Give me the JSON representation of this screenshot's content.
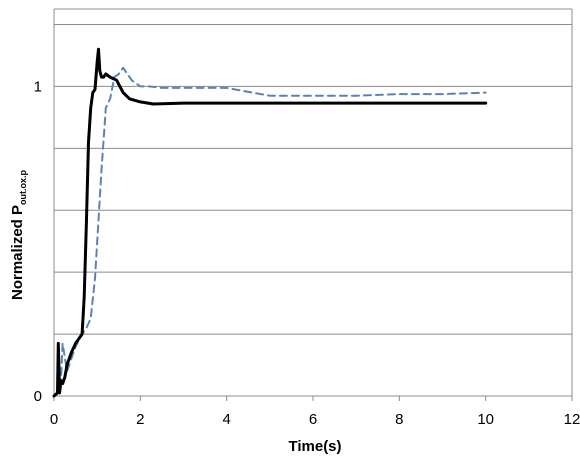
{
  "chart_data": {
    "type": "line",
    "xlabel": "Time(s)",
    "ylabel": {
      "main": "Normalized P",
      "subscript": "out.ox.p"
    },
    "xlim": [
      0,
      12
    ],
    "ylim": [
      0,
      1.25
    ],
    "x_ticks": [
      "0",
      "2",
      "4",
      "6",
      "8",
      "10",
      "12"
    ],
    "y_ticks": [
      "0",
      "1"
    ],
    "grid": {
      "horizontal": true,
      "vertical": false
    },
    "legend": "none",
    "series": [
      {
        "style": "solid",
        "color": "#000000",
        "x": [
          0,
          0.08,
          0.1,
          0.13,
          0.16,
          0.2,
          0.25,
          0.3,
          0.4,
          0.5,
          0.6,
          0.65,
          0.7,
          0.75,
          0.8,
          0.85,
          0.9,
          0.95,
          1.0,
          1.03,
          1.06,
          1.1,
          1.15,
          1.2,
          1.3,
          1.45,
          1.6,
          1.75,
          2.0,
          2.3,
          3.0,
          4.0,
          6.0,
          8.0,
          10.0
        ],
        "y": [
          0,
          0.01,
          0.17,
          0.01,
          0.05,
          0.04,
          0.06,
          0.1,
          0.14,
          0.17,
          0.19,
          0.2,
          0.32,
          0.56,
          0.82,
          0.93,
          0.98,
          0.99,
          1.08,
          1.12,
          1.05,
          1.03,
          1.03,
          1.04,
          1.03,
          1.02,
          0.98,
          0.96,
          0.95,
          0.943,
          0.946,
          0.946,
          0.946,
          0.946,
          0.946
        ]
      },
      {
        "style": "dashed",
        "color": "#5a82b4",
        "x": [
          0,
          0.15,
          0.2,
          0.3,
          0.5,
          0.65,
          0.75,
          0.85,
          0.95,
          1.1,
          1.2,
          1.3,
          1.4,
          1.5,
          1.6,
          1.7,
          1.8,
          2.0,
          2.2,
          2.5,
          3.0,
          4.0,
          4.6,
          5.0,
          6.0,
          7.0,
          8.0,
          9.0,
          10.0
        ],
        "y": [
          0,
          0.02,
          0.17,
          0.08,
          0.16,
          0.2,
          0.22,
          0.25,
          0.38,
          0.73,
          0.93,
          0.96,
          1.03,
          1.04,
          1.06,
          1.04,
          1.02,
          1.0,
          1.0,
          0.995,
          0.995,
          0.995,
          0.98,
          0.97,
          0.97,
          0.97,
          0.975,
          0.975,
          0.98
        ]
      }
    ]
  }
}
